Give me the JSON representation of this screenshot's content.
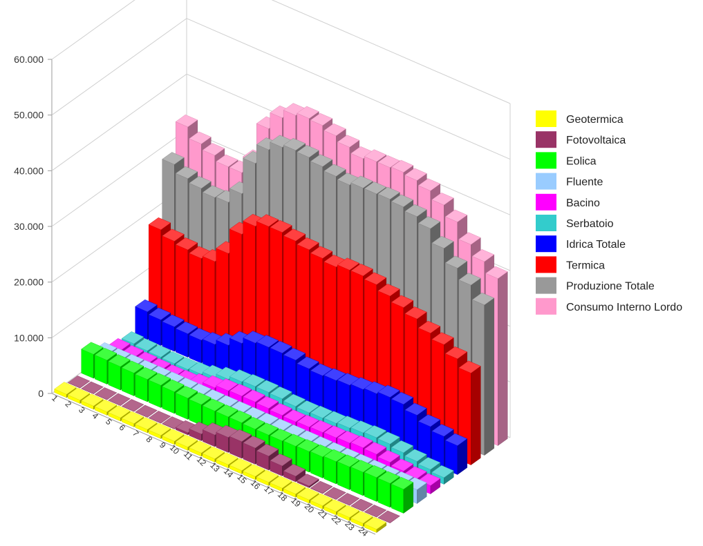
{
  "chart_data": {
    "type": "bar",
    "projection": "3d",
    "title": "",
    "xlabel": "",
    "ylabel": "",
    "ylim": [
      0,
      60000
    ],
    "yticks": [
      "0",
      "10.000",
      "20.000",
      "30.000",
      "40.000",
      "50.000",
      "60.000"
    ],
    "ytick_values": [
      0,
      10000,
      20000,
      30000,
      40000,
      50000,
      60000
    ],
    "grid": true,
    "legend_position": "right",
    "categories": [
      "1",
      "2",
      "3",
      "4",
      "5",
      "6",
      "7",
      "8",
      "9",
      "10",
      "11",
      "12",
      "13",
      "14",
      "15",
      "16",
      "17",
      "18",
      "19",
      "20",
      "21",
      "22",
      "23",
      "24"
    ],
    "series": [
      {
        "name": "Geotermica",
        "color": "#ffff00",
        "values": [
          600,
          600,
          600,
          600,
          600,
          600,
          600,
          600,
          600,
          600,
          600,
          600,
          600,
          600,
          600,
          600,
          600,
          600,
          600,
          600,
          600,
          600,
          600,
          600
        ]
      },
      {
        "name": "Fotovoltaica",
        "color": "#993366",
        "values": [
          0,
          0,
          0,
          0,
          0,
          0,
          0,
          50,
          400,
          1200,
          2100,
          2700,
          3000,
          2900,
          2500,
          1800,
          1000,
          300,
          50,
          0,
          0,
          0,
          0,
          0
        ]
      },
      {
        "name": "Eolica",
        "color": "#00ff00",
        "values": [
          4300,
          4300,
          4200,
          4100,
          4000,
          4000,
          3900,
          3800,
          3700,
          3600,
          3600,
          3600,
          3500,
          3500,
          3500,
          3600,
          3700,
          3800,
          4000,
          4100,
          4200,
          4300,
          4300,
          4300
        ]
      },
      {
        "name": "Fluente",
        "color": "#99ccff",
        "values": [
          2500,
          2500,
          2500,
          2500,
          2500,
          2500,
          2500,
          2500,
          2500,
          2500,
          2500,
          2500,
          2500,
          2500,
          2500,
          2500,
          2500,
          2500,
          2500,
          2500,
          2500,
          2500,
          2500,
          2500
        ]
      },
      {
        "name": "Bacino",
        "color": "#ff00ff",
        "values": [
          1500,
          1300,
          1200,
          1100,
          1000,
          1100,
          1500,
          2200,
          2700,
          2800,
          2800,
          2700,
          2500,
          2400,
          2500,
          2600,
          2700,
          2800,
          3000,
          2900,
          2500,
          2000,
          1700,
          1500
        ]
      },
      {
        "name": "Serbatoio",
        "color": "#33cccc",
        "values": [
          1000,
          800,
          700,
          600,
          600,
          800,
          1300,
          2000,
          2600,
          2800,
          2800,
          2700,
          2400,
          2300,
          2400,
          2500,
          2700,
          2900,
          3100,
          3000,
          2500,
          2000,
          1600,
          1200
        ]
      },
      {
        "name": "Idrica Totale",
        "color": "#0000ff",
        "values": [
          5000,
          4600,
          4400,
          4200,
          4100,
          4400,
          5300,
          6700,
          7800,
          8100,
          8100,
          7900,
          7400,
          7200,
          7400,
          7600,
          7900,
          8200,
          8600,
          8400,
          7500,
          6500,
          5800,
          5200
        ]
      },
      {
        "name": "Termica",
        "color": "#ff0000",
        "values": [
          18000,
          17000,
          16500,
          16000,
          16500,
          19000,
          23500,
          26000,
          27000,
          27000,
          26500,
          26000,
          25500,
          25000,
          25500,
          25500,
          25000,
          24000,
          23000,
          22000,
          20500,
          19500,
          18000,
          16500
        ]
      },
      {
        "name": "Produzione Totale",
        "color": "#999999",
        "values": [
          28000,
          26500,
          25800,
          25200,
          25400,
          28000,
          34500,
          38000,
          39500,
          40000,
          39800,
          39200,
          38500,
          38000,
          38500,
          38500,
          38600,
          38300,
          37600,
          36500,
          34000,
          31500,
          29500,
          27000
        ]
      },
      {
        "name": "Consumo Interno Lordo",
        "color": "#ff99cc",
        "values": [
          33000,
          31000,
          30000,
          29000,
          29000,
          32000,
          39000,
          42000,
          43500,
          44000,
          43800,
          43000,
          42000,
          41000,
          41500,
          41500,
          41700,
          41300,
          40500,
          39000,
          37000,
          34000,
          32000,
          30000
        ]
      }
    ]
  }
}
